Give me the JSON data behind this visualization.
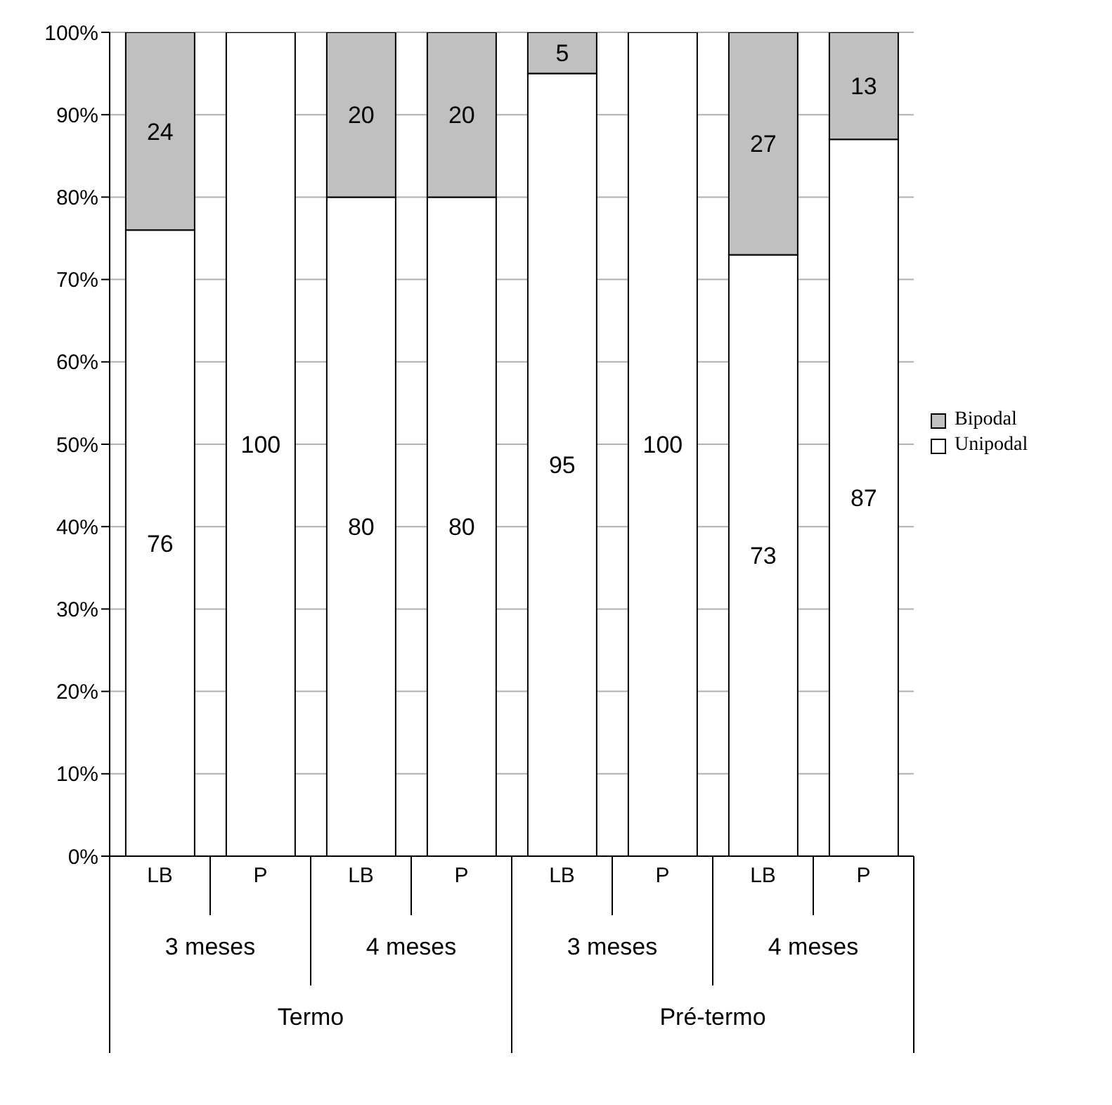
{
  "chart_data": {
    "type": "bar",
    "stacked": true,
    "categories": [
      "LB",
      "P",
      "LB",
      "P",
      "LB",
      "P",
      "LB",
      "P"
    ],
    "series": [
      {
        "name": "Unipodal",
        "color": "#ffffff",
        "values": [
          76,
          100,
          80,
          80,
          95,
          100,
          73,
          87
        ],
        "value_labels": [
          "76",
          "100",
          "80",
          "80",
          "95",
          "100",
          "73",
          "87"
        ]
      },
      {
        "name": "Bipodal",
        "color": "#c0c0c0",
        "values": [
          24,
          0,
          20,
          20,
          5,
          0,
          27,
          13
        ],
        "value_labels": [
          "24",
          null,
          "20",
          "20",
          "5",
          null,
          "27",
          "13"
        ]
      }
    ],
    "ylim": [
      0,
      100
    ],
    "yticks": [
      {
        "value": 0,
        "label": "0%"
      },
      {
        "value": 10,
        "label": "10%"
      },
      {
        "value": 20,
        "label": "20%"
      },
      {
        "value": 30,
        "label": "30%"
      },
      {
        "value": 40,
        "label": "40%"
      },
      {
        "value": 50,
        "label": "50%"
      },
      {
        "value": 60,
        "label": "60%"
      },
      {
        "value": 70,
        "label": "70%"
      },
      {
        "value": 80,
        "label": "80%"
      },
      {
        "value": 90,
        "label": "90%"
      },
      {
        "value": 100,
        "label": "100%"
      }
    ],
    "grid": "y",
    "legend": "right",
    "annotations": [
      "3 meses",
      "4 meses",
      "3 meses",
      "4 meses",
      "Termo",
      "Pré-termo"
    ]
  }
}
